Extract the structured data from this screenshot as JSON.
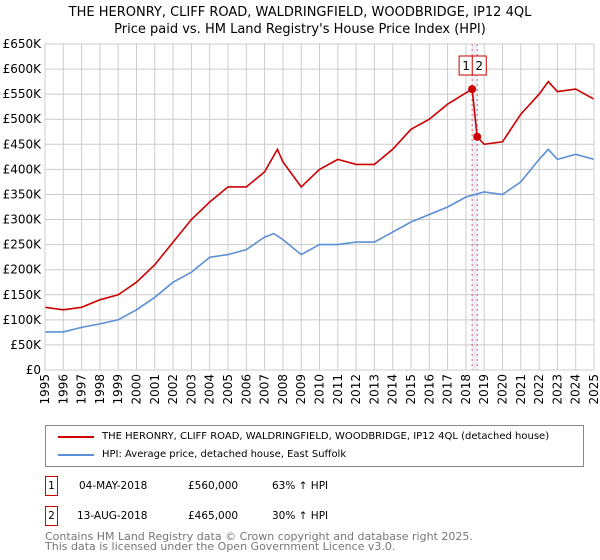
{
  "title_line1": "THE HERONRY, CLIFF ROAD, WALDRINGFIELD, WOODBRIDGE, IP12 4QL",
  "title_line2": "Price paid vs. HM Land Registry's House Price Index (HPI)",
  "chart_data": {
    "type": "line",
    "xlim": [
      1995,
      2025
    ],
    "ylim": [
      0,
      650000
    ],
    "x_ticks": [
      "1995",
      "1996",
      "1997",
      "1998",
      "1999",
      "2000",
      "2001",
      "2002",
      "2003",
      "2004",
      "2005",
      "2006",
      "2007",
      "2008",
      "2009",
      "2010",
      "2011",
      "2012",
      "2013",
      "2014",
      "2015",
      "2016",
      "2017",
      "2018",
      "2019",
      "2020",
      "2021",
      "2022",
      "2023",
      "2024",
      "2025"
    ],
    "y_ticks": [
      {
        "v": 0,
        "label": "£0"
      },
      {
        "v": 50000,
        "label": "£50K"
      },
      {
        "v": 100000,
        "label": "£100K"
      },
      {
        "v": 150000,
        "label": "£150K"
      },
      {
        "v": 200000,
        "label": "£200K"
      },
      {
        "v": 250000,
        "label": "£250K"
      },
      {
        "v": 300000,
        "label": "£300K"
      },
      {
        "v": 350000,
        "label": "£350K"
      },
      {
        "v": 400000,
        "label": "£400K"
      },
      {
        "v": 450000,
        "label": "£450K"
      },
      {
        "v": 500000,
        "label": "£500K"
      },
      {
        "v": 550000,
        "label": "£550K"
      },
      {
        "v": 600000,
        "label": "£600K"
      },
      {
        "v": 650000,
        "label": "£650K"
      }
    ],
    "grid": true,
    "series": [
      {
        "name": "THE HERONRY, CLIFF ROAD, WALDRINGFIELD, WOODBRIDGE, IP12 4QL (detached house)",
        "color": "#cc0000",
        "x": [
          1995,
          1996,
          1997,
          1998,
          1999,
          2000,
          2001,
          2002,
          2003,
          2004,
          2005,
          2006,
          2007,
          2007.7,
          2008,
          2009,
          2010,
          2011,
          2012,
          2013,
          2014,
          2015,
          2016,
          2017,
          2018.34,
          2018.62,
          2019,
          2020,
          2021,
          2022,
          2022.5,
          2023,
          2024,
          2025
        ],
        "y": [
          125000,
          120000,
          125000,
          140000,
          150000,
          175000,
          210000,
          255000,
          300000,
          335000,
          365000,
          365000,
          395000,
          440000,
          415000,
          365000,
          400000,
          420000,
          410000,
          410000,
          440000,
          480000,
          500000,
          530000,
          560000,
          465000,
          450000,
          455000,
          510000,
          550000,
          575000,
          555000,
          560000,
          540000
        ]
      },
      {
        "name": "HPI: Average price, detached house, East Suffolk",
        "color": "#5b8fd6",
        "x": [
          1995,
          1996,
          1997,
          1998,
          1999,
          2000,
          2001,
          2002,
          2003,
          2004,
          2005,
          2006,
          2007,
          2007.5,
          2008,
          2009,
          2010,
          2011,
          2012,
          2013,
          2014,
          2015,
          2016,
          2017,
          2018,
          2019,
          2020,
          2021,
          2022,
          2022.5,
          2023,
          2024,
          2025
        ],
        "y": [
          76000,
          76000,
          85000,
          92000,
          100000,
          120000,
          145000,
          175000,
          195000,
          225000,
          230000,
          240000,
          265000,
          272000,
          260000,
          230000,
          250000,
          250000,
          255000,
          255000,
          275000,
          295000,
          310000,
          325000,
          345000,
          355000,
          350000,
          375000,
          420000,
          440000,
          420000,
          430000,
          420000
        ]
      }
    ],
    "annotations": [
      {
        "label": "1",
        "x": 2018.34,
        "y": 560000
      },
      {
        "label": "2",
        "x": 2018.62,
        "y": 465000
      }
    ]
  },
  "legend": {
    "property": "THE HERONRY, CLIFF ROAD, WALDRINGFIELD, WOODBRIDGE, IP12 4QL (detached house)",
    "hpi": "HPI: Average price, detached house, East Suffolk"
  },
  "transactions": [
    {
      "num": "1",
      "date": "04-MAY-2018",
      "price": "£560,000",
      "hpi": "63% ↑ HPI"
    },
    {
      "num": "2",
      "date": "13-AUG-2018",
      "price": "£465,000",
      "hpi": "30% ↑ HPI"
    }
  ],
  "footer1": "Contains HM Land Registry data © Crown copyright and database right 2025.",
  "footer2": "This data is licensed under the Open Government Licence v3.0."
}
